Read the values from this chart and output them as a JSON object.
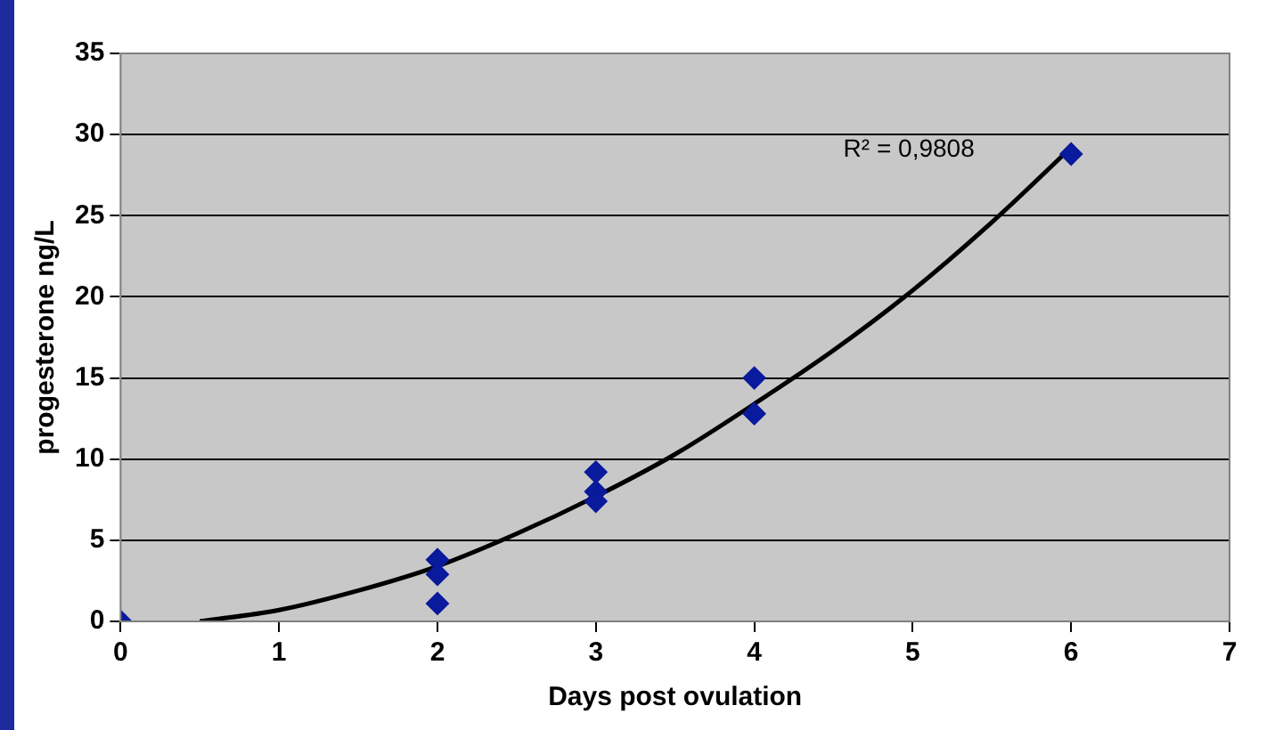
{
  "chart_data": {
    "type": "scatter",
    "xlabel": "Days post ovulation",
    "ylabel": "progesterone ng/L",
    "xlim": [
      0,
      7
    ],
    "xticks": [
      0,
      1,
      2,
      3,
      4,
      5,
      6,
      7
    ],
    "ylim": [
      0,
      35
    ],
    "yticks": [
      0,
      5,
      10,
      15,
      20,
      25,
      30,
      35
    ],
    "grid": "y",
    "legend": false,
    "marker": "diamond",
    "series": [
      {
        "type": "scatter",
        "color": "#0a1a9c",
        "x": [
          0,
          2,
          2,
          2,
          3,
          3,
          3,
          4,
          4,
          6
        ],
        "values": [
          0,
          3.8,
          2.9,
          1.1,
          9.2,
          8.0,
          7.4,
          15,
          12.8,
          28.8
        ]
      },
      {
        "type": "line",
        "color": "#000000",
        "marker": "none",
        "line_style": "solid",
        "x": [
          0.5,
          1,
          1.5,
          2,
          2.5,
          3,
          3.5,
          4,
          4.5,
          5,
          5.5,
          6
        ],
        "values": [
          0,
          0.7,
          1.9,
          3.4,
          5.4,
          7.7,
          10.3,
          13.4,
          16.7,
          20.4,
          24.6,
          29.2
        ]
      }
    ],
    "annotations": [
      "R² = 0,9808"
    ]
  }
}
